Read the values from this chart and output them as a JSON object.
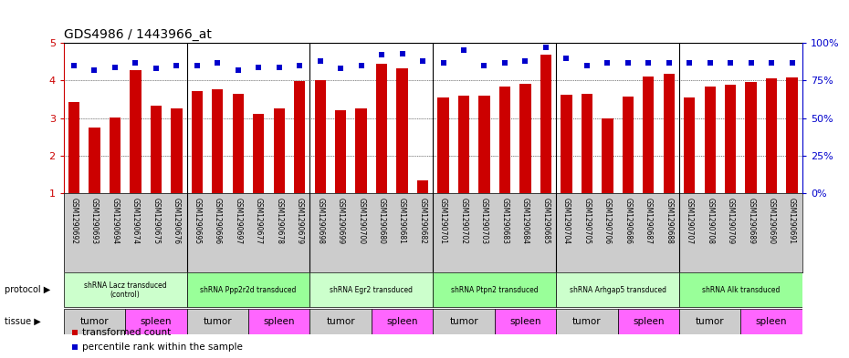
{
  "title": "GDS4986 / 1443966_at",
  "samples": [
    "GSM1290692",
    "GSM1290693",
    "GSM1290694",
    "GSM1290674",
    "GSM1290675",
    "GSM1290676",
    "GSM1290695",
    "GSM1290696",
    "GSM1290697",
    "GSM1290677",
    "GSM1290678",
    "GSM1290679",
    "GSM1290698",
    "GSM1290699",
    "GSM1290700",
    "GSM1290680",
    "GSM1290681",
    "GSM1290682",
    "GSM1290701",
    "GSM1290702",
    "GSM1290703",
    "GSM1290683",
    "GSM1290684",
    "GSM1290685",
    "GSM1290704",
    "GSM1290705",
    "GSM1290706",
    "GSM1290686",
    "GSM1290687",
    "GSM1290688",
    "GSM1290707",
    "GSM1290708",
    "GSM1290709",
    "GSM1290689",
    "GSM1290690",
    "GSM1290691"
  ],
  "bar_values": [
    3.42,
    2.75,
    3.02,
    4.27,
    3.32,
    3.25,
    3.73,
    3.76,
    3.64,
    3.12,
    3.26,
    3.99,
    4.01,
    3.22,
    3.27,
    4.45,
    4.33,
    1.35,
    3.54,
    3.61,
    3.59,
    3.85,
    3.92,
    4.69,
    3.63,
    3.65,
    3.0,
    3.58,
    4.1,
    4.17,
    3.56,
    3.84,
    3.88,
    3.95,
    4.05,
    4.08
  ],
  "percentile_values": [
    85,
    82,
    84,
    87,
    83,
    85,
    85,
    87,
    82,
    84,
    84,
    85,
    88,
    83,
    85,
    92,
    93,
    88,
    87,
    95,
    85,
    87,
    88,
    97,
    90,
    85,
    87,
    87,
    87,
    87,
    87,
    87,
    87,
    87,
    87,
    87
  ],
  "protocols": [
    {
      "label": "shRNA Lacz transduced\n(control)",
      "start": 0,
      "end": 5,
      "color": "#ccffcc"
    },
    {
      "label": "shRNA Ppp2r2d transduced",
      "start": 6,
      "end": 11,
      "color": "#99ff99"
    },
    {
      "label": "shRNA Egr2 transduced",
      "start": 12,
      "end": 17,
      "color": "#ccffcc"
    },
    {
      "label": "shRNA Ptpn2 transduced",
      "start": 18,
      "end": 23,
      "color": "#99ff99"
    },
    {
      "label": "shRNA Arhgap5 transduced",
      "start": 24,
      "end": 29,
      "color": "#ccffcc"
    },
    {
      "label": "shRNA Alk transduced",
      "start": 30,
      "end": 35,
      "color": "#99ff99"
    }
  ],
  "tissues": [
    {
      "label": "tumor",
      "start": 0,
      "end": 2,
      "color": "#cccccc"
    },
    {
      "label": "spleen",
      "start": 3,
      "end": 5,
      "color": "#ff66ff"
    },
    {
      "label": "tumor",
      "start": 6,
      "end": 8,
      "color": "#cccccc"
    },
    {
      "label": "spleen",
      "start": 9,
      "end": 11,
      "color": "#ff66ff"
    },
    {
      "label": "tumor",
      "start": 12,
      "end": 14,
      "color": "#cccccc"
    },
    {
      "label": "spleen",
      "start": 15,
      "end": 17,
      "color": "#ff66ff"
    },
    {
      "label": "tumor",
      "start": 18,
      "end": 20,
      "color": "#cccccc"
    },
    {
      "label": "spleen",
      "start": 21,
      "end": 23,
      "color": "#ff66ff"
    },
    {
      "label": "tumor",
      "start": 24,
      "end": 26,
      "color": "#cccccc"
    },
    {
      "label": "spleen",
      "start": 27,
      "end": 29,
      "color": "#ff66ff"
    },
    {
      "label": "tumor",
      "start": 30,
      "end": 32,
      "color": "#cccccc"
    },
    {
      "label": "spleen",
      "start": 33,
      "end": 35,
      "color": "#ff66ff"
    }
  ],
  "ylim": [
    1,
    5
  ],
  "yticks": [
    1,
    2,
    3,
    4,
    5
  ],
  "right_yticks": [
    0,
    25,
    50,
    75,
    100
  ],
  "right_yticklabels": [
    "0%",
    "25%",
    "50%",
    "75%",
    "100%"
  ],
  "bar_color": "#cc0000",
  "dot_color": "#0000cc",
  "background_color": "#ffffff",
  "grid_color": "#888888",
  "tick_bg_color": "#cccccc",
  "separator_positions": [
    5.5,
    11.5,
    17.5,
    23.5,
    29.5
  ]
}
